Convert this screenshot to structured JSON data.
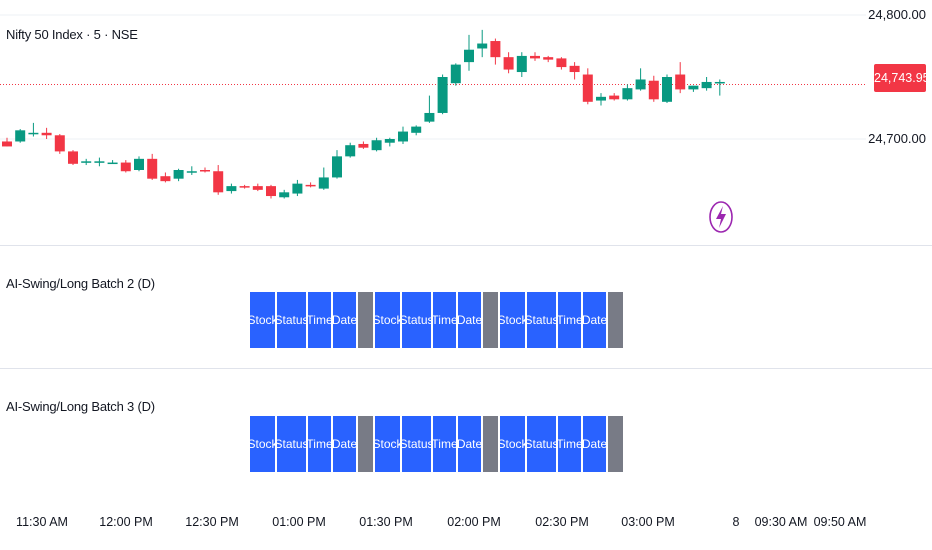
{
  "symbol": {
    "title": "Nifty 50 Index · 5 · NSE"
  },
  "price_axis": {
    "labels": [
      "24,800.00",
      "24,700.00"
    ],
    "last_price": "24,743.95"
  },
  "panes": [
    {
      "title": "AI-Swing/Long Batch 2 (D)"
    },
    {
      "title": "AI-Swing/Long Batch 3 (D)"
    }
  ],
  "table": {
    "groups": [
      [
        "Stock",
        "Status",
        "Time",
        "Date"
      ],
      [
        "Stock",
        "Status",
        "Time",
        "Date"
      ],
      [
        "Stock",
        "Status",
        "Time",
        "Date"
      ]
    ]
  },
  "time_axis": {
    "labels": [
      "11:30 AM",
      "12:00 PM",
      "12:30 PM",
      "01:00 PM",
      "01:30 PM",
      "02:00 PM",
      "02:30 PM",
      "03:00 PM",
      "8",
      "09:30 AM",
      "09:50 AM"
    ]
  },
  "colors": {
    "up": "#089981",
    "down": "#f23645",
    "table_cell": "#2962ff",
    "table_separator": "#787b86",
    "last_price": "#f23645",
    "bolt": "#9c27b0"
  },
  "icons": {
    "bolt": "lightning-bolt-icon"
  },
  "chart_data": {
    "type": "candlestick",
    "title": "Nifty 50 Index · 5 · NSE",
    "ylim": [
      24655,
      24820
    ],
    "y_ticks": [
      24800,
      24700
    ],
    "last_price": 24743.95,
    "candles": [
      {
        "o": 24698,
        "h": 24701,
        "l": 24694,
        "c": 24694
      },
      {
        "o": 24698,
        "h": 24708,
        "l": 24697,
        "c": 24707
      },
      {
        "o": 24705,
        "h": 24713,
        "l": 24702,
        "c": 24705
      },
      {
        "o": 24705,
        "h": 24709,
        "l": 24700,
        "c": 24703
      },
      {
        "o": 24703,
        "h": 24704,
        "l": 24688,
        "c": 24690
      },
      {
        "o": 24690,
        "h": 24691,
        "l": 24679,
        "c": 24680
      },
      {
        "o": 24681,
        "h": 24684,
        "l": 24679,
        "c": 24682
      },
      {
        "o": 24681,
        "h": 24685,
        "l": 24678,
        "c": 24682
      },
      {
        "o": 24681,
        "h": 24683,
        "l": 24680,
        "c": 24681
      },
      {
        "o": 24681,
        "h": 24683,
        "l": 24673,
        "c": 24674
      },
      {
        "o": 24675,
        "h": 24686,
        "l": 24674,
        "c": 24684
      },
      {
        "o": 24684,
        "h": 24688,
        "l": 24667,
        "c": 24668
      },
      {
        "o": 24670,
        "h": 24673,
        "l": 24665,
        "c": 24666
      },
      {
        "o": 24668,
        "h": 24676,
        "l": 24666,
        "c": 24675
      },
      {
        "o": 24673,
        "h": 24678,
        "l": 24671,
        "c": 24674
      },
      {
        "o": 24675,
        "h": 24677,
        "l": 24673,
        "c": 24674
      },
      {
        "o": 24674,
        "h": 24679,
        "l": 24655,
        "c": 24657
      },
      {
        "o": 24658,
        "h": 24664,
        "l": 24656,
        "c": 24662
      },
      {
        "o": 24662,
        "h": 24663,
        "l": 24660,
        "c": 24661
      },
      {
        "o": 24662,
        "h": 24664,
        "l": 24658,
        "c": 24659
      },
      {
        "o": 24662,
        "h": 24663,
        "l": 24652,
        "c": 24654
      },
      {
        "o": 24653,
        "h": 24659,
        "l": 24652,
        "c": 24657
      },
      {
        "o": 24656,
        "h": 24667,
        "l": 24654,
        "c": 24664
      },
      {
        "o": 24663,
        "h": 24665,
        "l": 24661,
        "c": 24662
      },
      {
        "o": 24660,
        "h": 24677,
        "l": 24659,
        "c": 24669
      },
      {
        "o": 24669,
        "h": 24691,
        "l": 24668,
        "c": 24686
      },
      {
        "o": 24686,
        "h": 24697,
        "l": 24685,
        "c": 24695
      },
      {
        "o": 24696,
        "h": 24698,
        "l": 24692,
        "c": 24693
      },
      {
        "o": 24691,
        "h": 24701,
        "l": 24690,
        "c": 24699
      },
      {
        "o": 24697,
        "h": 24701,
        "l": 24694,
        "c": 24700
      },
      {
        "o": 24698,
        "h": 24710,
        "l": 24696,
        "c": 24706
      },
      {
        "o": 24705,
        "h": 24711,
        "l": 24703,
        "c": 24710
      },
      {
        "o": 24714,
        "h": 24735,
        "l": 24713,
        "c": 24721
      },
      {
        "o": 24721,
        "h": 24752,
        "l": 24720,
        "c": 24750
      },
      {
        "o": 24745,
        "h": 24761,
        "l": 24743,
        "c": 24760
      },
      {
        "o": 24762,
        "h": 24784,
        "l": 24755,
        "c": 24772
      },
      {
        "o": 24773,
        "h": 24788,
        "l": 24766,
        "c": 24777
      },
      {
        "o": 24779,
        "h": 24781,
        "l": 24760,
        "c": 24766
      },
      {
        "o": 24766,
        "h": 24770,
        "l": 24753,
        "c": 24756
      },
      {
        "o": 24754,
        "h": 24770,
        "l": 24750,
        "c": 24767
      },
      {
        "o": 24767,
        "h": 24770,
        "l": 24763,
        "c": 24765
      },
      {
        "o": 24766,
        "h": 24767,
        "l": 24762,
        "c": 24764
      },
      {
        "o": 24765,
        "h": 24766,
        "l": 24756,
        "c": 24758
      },
      {
        "o": 24759,
        "h": 24762,
        "l": 24748,
        "c": 24754
      },
      {
        "o": 24752,
        "h": 24757,
        "l": 24728,
        "c": 24730
      },
      {
        "o": 24731,
        "h": 24737,
        "l": 24727,
        "c": 24734
      },
      {
        "o": 24735,
        "h": 24737,
        "l": 24731,
        "c": 24732
      },
      {
        "o": 24732,
        "h": 24744,
        "l": 24731,
        "c": 24741
      },
      {
        "o": 24740,
        "h": 24757,
        "l": 24739,
        "c": 24748
      },
      {
        "o": 24747,
        "h": 24751,
        "l": 24730,
        "c": 24732
      },
      {
        "o": 24730,
        "h": 24752,
        "l": 24729,
        "c": 24750
      },
      {
        "o": 24752,
        "h": 24762,
        "l": 24737,
        "c": 24740
      },
      {
        "o": 24740,
        "h": 24743,
        "l": 24738,
        "c": 24743
      },
      {
        "o": 24741,
        "h": 24750,
        "l": 24739,
        "c": 24746
      },
      {
        "o": 24745,
        "h": 24748,
        "l": 24735,
        "c": 24746
      }
    ]
  }
}
